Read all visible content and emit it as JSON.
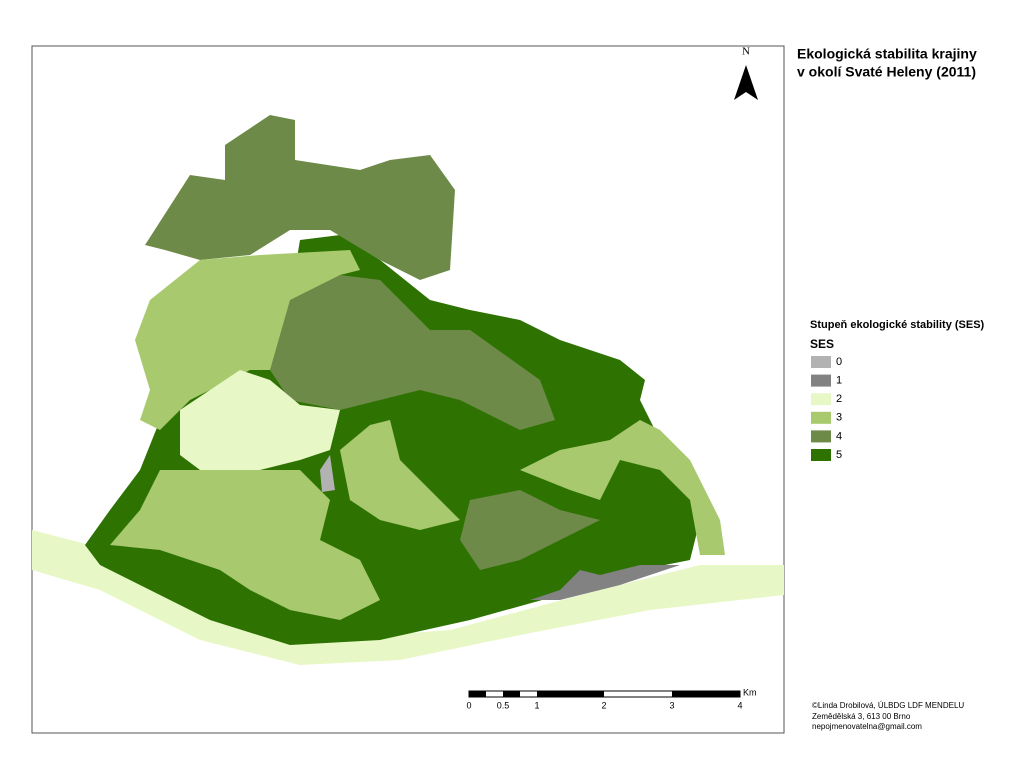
{
  "title": [
    "Ekologická stabilita krajiny",
    "v okolí Svaté Heleny (2011)"
  ],
  "north": "N",
  "legend": {
    "title": "Stupeň ekologické stability (SES)",
    "header": "SES",
    "items": [
      {
        "label": "0",
        "color": "#b2b2b2"
      },
      {
        "label": "1",
        "color": "#828282"
      },
      {
        "label": "2",
        "color": "#e8f7c6"
      },
      {
        "label": "3",
        "color": "#a8c96e"
      },
      {
        "label": "4",
        "color": "#6e8a48"
      },
      {
        "label": "5",
        "color": "#2e7302"
      }
    ]
  },
  "scale_bar": {
    "labels": [
      "0",
      "0.5",
      "1",
      "2",
      "3",
      "4"
    ],
    "unit": "Km"
  },
  "credits": [
    "©Linda Drobilová, ÚLBDG LDF MENDELU",
    "Zemědělská 3, 613 00 Brno",
    "nepojmenovatelna@gmail.com"
  ]
}
